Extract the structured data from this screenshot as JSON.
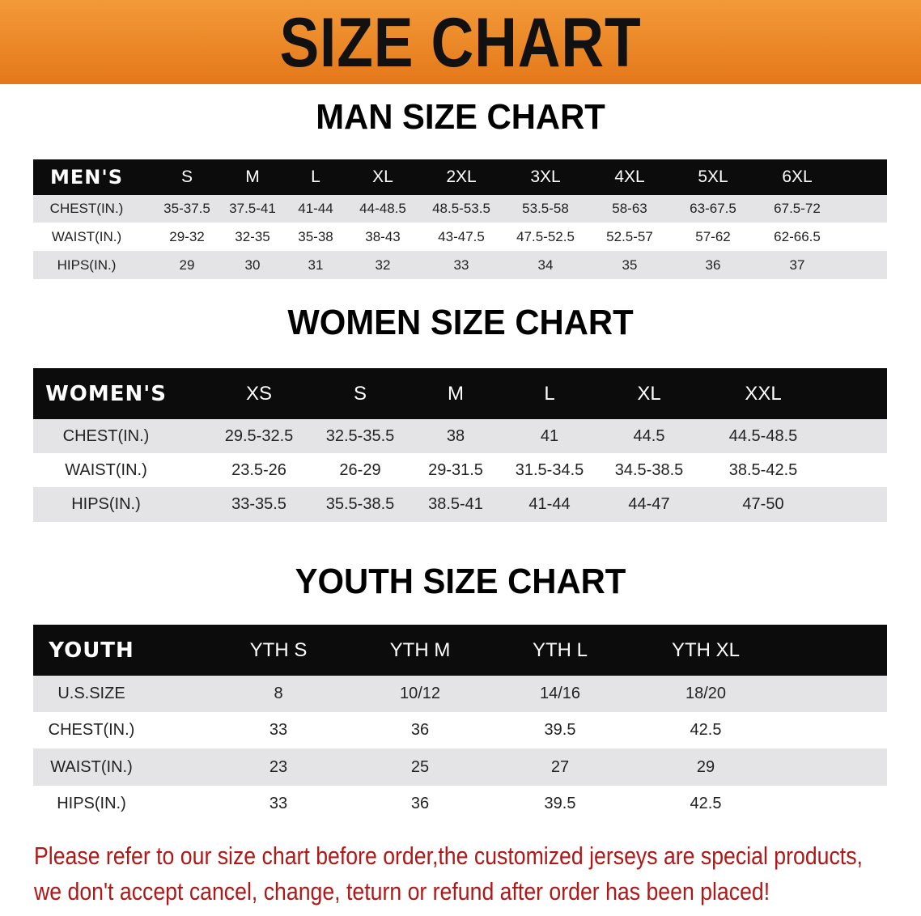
{
  "banner_title": "SIZE CHART",
  "colors": {
    "banner": "#ec8a2a",
    "header_row": "#0c0c0c",
    "stripe": "#e4e4e6",
    "note": "#b01818"
  },
  "men": {
    "title": "MAN SIZE CHART",
    "header": [
      "MEN'S",
      "S",
      "M",
      "L",
      "XL",
      "2XL",
      "3XL",
      "4XL",
      "5XL",
      "6XL"
    ],
    "rows": [
      [
        "CHEST(IN.)",
        "35-37.5",
        "37.5-41",
        "41-44",
        "44-48.5",
        "48.5-53.5",
        "53.5-58",
        "58-63",
        "63-67.5",
        "67.5-72"
      ],
      [
        "WAIST(IN.)",
        "29-32",
        "32-35",
        "35-38",
        "38-43",
        "43-47.5",
        "47.5-52.5",
        "52.5-57",
        "57-62",
        "62-66.5"
      ],
      [
        "HIPS(IN.)",
        "29",
        "30",
        "31",
        "32",
        "33",
        "34",
        "35",
        "36",
        "37"
      ]
    ]
  },
  "women": {
    "title": "WOMEN SIZE CHART",
    "header": [
      "WOMEN'S",
      "XS",
      "S",
      "M",
      "L",
      "XL",
      "XXL"
    ],
    "rows": [
      [
        "CHEST(IN.)",
        "29.5-32.5",
        "32.5-35.5",
        "38",
        "41",
        "44.5",
        "44.5-48.5"
      ],
      [
        "WAIST(IN.)",
        "23.5-26",
        "26-29",
        "29-31.5",
        "31.5-34.5",
        "34.5-38.5",
        "38.5-42.5"
      ],
      [
        "HIPS(IN.)",
        "33-35.5",
        "35.5-38.5",
        "38.5-41",
        "41-44",
        "44-47",
        "47-50"
      ]
    ]
  },
  "youth": {
    "title": "YOUTH SIZE CHART",
    "header": [
      "YOUTH",
      "YTH S",
      "YTH M",
      "YTH L",
      "YTH XL"
    ],
    "rows": [
      [
        "U.S.SIZE",
        "8",
        "10/12",
        "14/16",
        "18/20"
      ],
      [
        "CHEST(IN.)",
        "33",
        "36",
        "39.5",
        "42.5"
      ],
      [
        "WAIST(IN.)",
        "23",
        "25",
        "27",
        "29"
      ],
      [
        "HIPS(IN.)",
        "33",
        "36",
        "39.5",
        "42.5"
      ]
    ]
  },
  "note": {
    "line1": "Please refer to our size chart before order,the customized jerseys are special products,",
    "line2": "we don't accept cancel, change, teturn or refund after order has been placed!"
  }
}
